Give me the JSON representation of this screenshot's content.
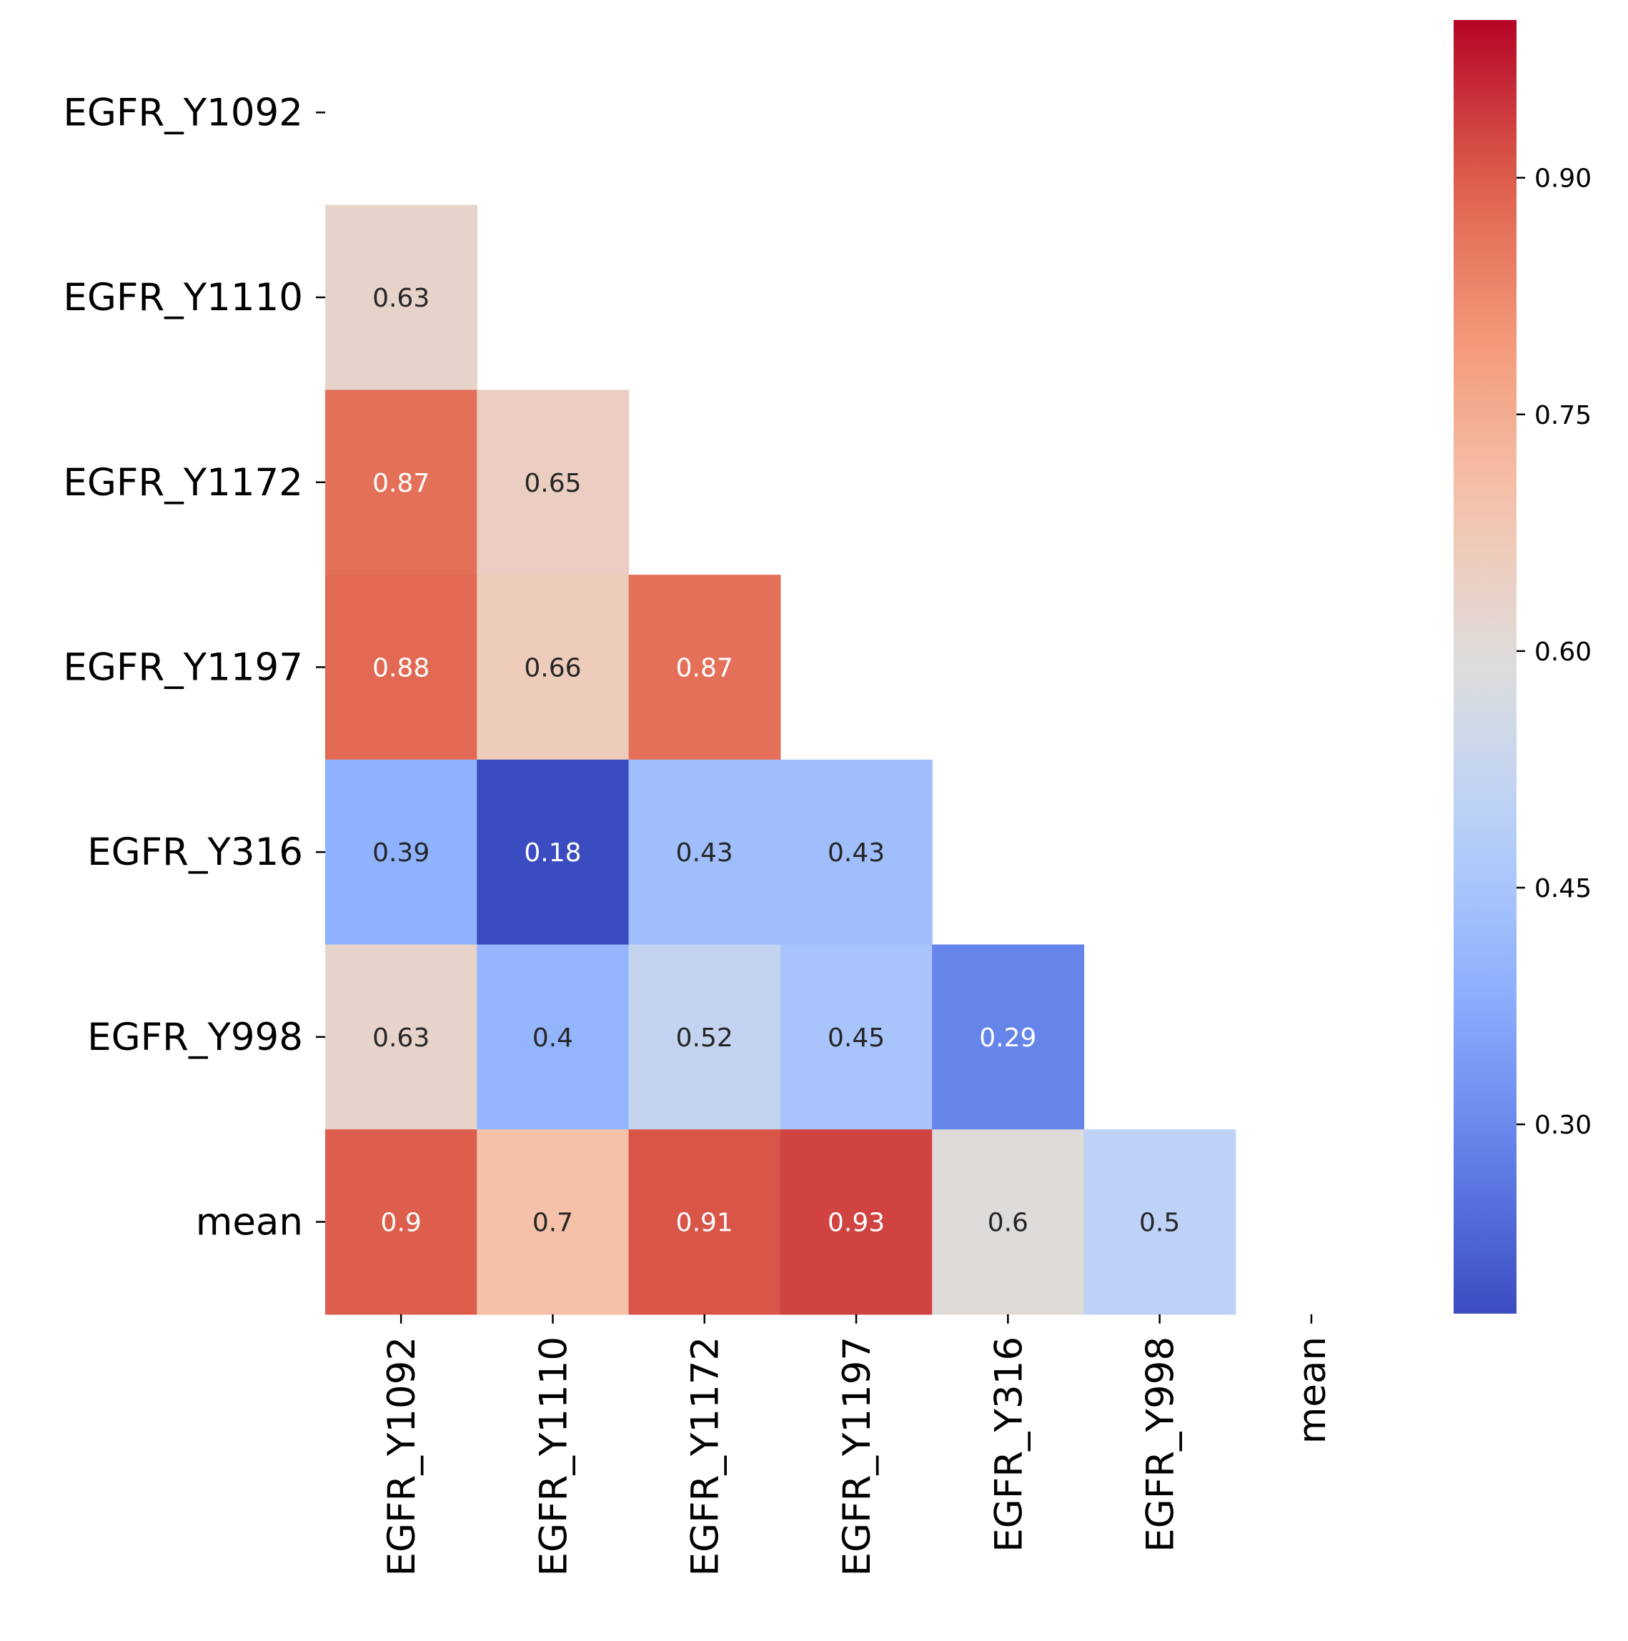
{
  "chart_data": {
    "type": "heatmap",
    "title": "",
    "xlabel": "",
    "ylabel": "",
    "colormap": "coolwarm",
    "mask": "upper-triangle-including-diagonal",
    "row_labels": [
      "EGFR_Y1092",
      "EGFR_Y1110",
      "EGFR_Y1172",
      "EGFR_Y1197",
      "EGFR_Y316",
      "EGFR_Y998",
      "mean"
    ],
    "col_labels": [
      "EGFR_Y1092",
      "EGFR_Y1110",
      "EGFR_Y1172",
      "EGFR_Y1197",
      "EGFR_Y316",
      "EGFR_Y998",
      "mean"
    ],
    "values": [
      [
        null,
        null,
        null,
        null,
        null,
        null,
        null
      ],
      [
        0.63,
        null,
        null,
        null,
        null,
        null,
        null
      ],
      [
        0.87,
        0.65,
        null,
        null,
        null,
        null,
        null
      ],
      [
        0.88,
        0.66,
        0.87,
        null,
        null,
        null,
        null
      ],
      [
        0.39,
        0.18,
        0.43,
        0.43,
        null,
        null,
        null
      ],
      [
        0.63,
        0.4,
        0.52,
        0.45,
        0.29,
        null,
        null
      ],
      [
        0.9,
        0.7,
        0.91,
        0.93,
        0.6,
        0.5,
        null
      ]
    ],
    "cell_labels": [
      [
        null,
        null,
        null,
        null,
        null,
        null,
        null
      ],
      [
        "0.63",
        null,
        null,
        null,
        null,
        null,
        null
      ],
      [
        "0.87",
        "0.65",
        null,
        null,
        null,
        null,
        null
      ],
      [
        "0.88",
        "0.66",
        "0.87",
        null,
        null,
        null,
        null
      ],
      [
        "0.39",
        "0.18",
        "0.43",
        "0.43",
        null,
        null,
        null
      ],
      [
        "0.63",
        "0.4",
        "0.52",
        "0.45",
        "0.29",
        null,
        null
      ],
      [
        "0.9",
        "0.7",
        "0.91",
        "0.93",
        "0.6",
        "0.5",
        null
      ]
    ],
    "colorbar": {
      "range": [
        0.18,
        1.0
      ],
      "ticks": [
        0.3,
        0.45,
        0.6,
        0.75,
        0.9
      ],
      "tick_labels": [
        "0.30",
        "0.45",
        "0.60",
        "0.75",
        "0.90"
      ]
    },
    "legend": "none",
    "grid": false
  }
}
